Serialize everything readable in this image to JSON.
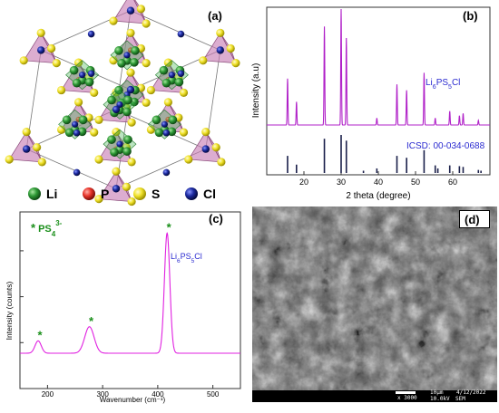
{
  "figure": {
    "panels": {
      "a": {
        "label": "(a)",
        "legend": [
          {
            "symbol": "Li",
            "color": "#2e9a36"
          },
          {
            "symbol": "P",
            "color": "#e8352b"
          },
          {
            "symbol": "S",
            "color": "#f1e32a"
          },
          {
            "symbol": "Cl",
            "color": "#1c2aa0"
          }
        ]
      },
      "b": {
        "label": "(b)",
        "annotations": {
          "compound_parts": [
            "Li",
            "6",
            "PS",
            "5",
            "Cl"
          ],
          "reference": "ICSD: 00-034-0688"
        }
      },
      "c": {
        "label": "(c)",
        "annotations": {
          "peak_marker": "*",
          "ps4_parts": [
            "PS",
            "4",
            "3-"
          ],
          "compound_parts": [
            "Li",
            "6",
            "PS",
            "5",
            "Cl"
          ]
        }
      },
      "d": {
        "label": "(d)",
        "sem_bar": {
          "magnification": "x 3000",
          "scale": "10μm",
          "date": "4/12/2022",
          "voltage": "10.0kV",
          "mode": "SEM"
        }
      }
    }
  },
  "chart_data": [
    {
      "panel": "b",
      "type": "line",
      "xlabel": "2 theta (degree)",
      "ylabel": "Intensity (a.u)",
      "xlim": [
        10,
        70
      ],
      "xticks": [
        20,
        30,
        40,
        50,
        60
      ],
      "series": [
        {
          "name": "Li6PS5Cl",
          "color": "#b020c8",
          "peaks": [
            {
              "x": 15.6,
              "h": 0.4
            },
            {
              "x": 18.0,
              "h": 0.2
            },
            {
              "x": 25.5,
              "h": 0.85
            },
            {
              "x": 30.0,
              "h": 1.0
            },
            {
              "x": 31.4,
              "h": 0.75
            },
            {
              "x": 39.6,
              "h": 0.06
            },
            {
              "x": 45.0,
              "h": 0.35
            },
            {
              "x": 47.6,
              "h": 0.3
            },
            {
              "x": 52.3,
              "h": 0.45
            },
            {
              "x": 55.3,
              "h": 0.06
            },
            {
              "x": 59.2,
              "h": 0.12
            },
            {
              "x": 61.8,
              "h": 0.08
            },
            {
              "x": 62.8,
              "h": 0.1
            },
            {
              "x": 66.9,
              "h": 0.04
            }
          ]
        },
        {
          "name": "ICSD: 00-034-0688",
          "color": "#1a1f4a",
          "sticks": [
            {
              "x": 15.6,
              "h": 0.45
            },
            {
              "x": 18.0,
              "h": 0.22
            },
            {
              "x": 25.5,
              "h": 0.9
            },
            {
              "x": 30.0,
              "h": 1.0
            },
            {
              "x": 31.4,
              "h": 0.85
            },
            {
              "x": 36.0,
              "h": 0.06
            },
            {
              "x": 39.6,
              "h": 0.12
            },
            {
              "x": 45.0,
              "h": 0.45
            },
            {
              "x": 47.6,
              "h": 0.4
            },
            {
              "x": 52.3,
              "h": 0.6
            },
            {
              "x": 55.3,
              "h": 0.2
            },
            {
              "x": 56.0,
              "h": 0.12
            },
            {
              "x": 59.2,
              "h": 0.2
            },
            {
              "x": 61.8,
              "h": 0.18
            },
            {
              "x": 62.8,
              "h": 0.16
            },
            {
              "x": 66.9,
              "h": 0.08
            },
            {
              "x": 67.6,
              "h": 0.06
            }
          ]
        }
      ]
    },
    {
      "panel": "c",
      "type": "line",
      "xlabel": "Wavenumber (cm⁻¹)",
      "ylabel": "Intensity (counts)",
      "xlim": [
        150,
        550
      ],
      "xticks": [
        200,
        300,
        400,
        500
      ],
      "series": [
        {
          "name": "Li6PS5Cl",
          "color": "#e020e0",
          "baseline": 0.2,
          "peaks": [
            {
              "x": 183,
              "h": 0.07,
              "w": 8
            },
            {
              "x": 276,
              "h": 0.15,
              "w": 12
            },
            {
              "x": 417,
              "h": 0.68,
              "w": 7
            }
          ],
          "starred": [
            183,
            276,
            417
          ]
        }
      ]
    }
  ]
}
